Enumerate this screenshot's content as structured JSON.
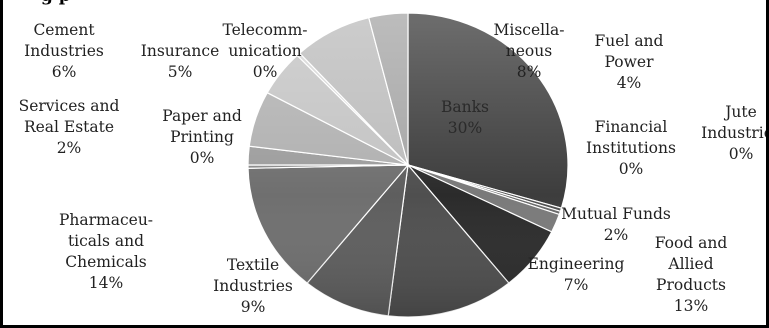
{
  "chart_data": {
    "type": "pie",
    "title_partial": "g                   p",
    "slices": [
      {
        "label": "Banks",
        "lines": [
          "Banks"
        ],
        "pct_label": "30%",
        "value": 30,
        "color": "#3d3d3d"
      },
      {
        "label": "Jute Industries",
        "lines": [
          "Jute",
          "Industries"
        ],
        "pct_label": "0%",
        "value": 0.35,
        "color": "#505050"
      },
      {
        "label": "Financial Institutions",
        "lines": [
          "Financial",
          "Institutions"
        ],
        "pct_label": "0%",
        "value": 0.35,
        "color": "#6a6a6a"
      },
      {
        "label": "Mutual Funds",
        "lines": [
          "Mutual Funds"
        ],
        "pct_label": "2%",
        "value": 2,
        "color": "#7a7a7a"
      },
      {
        "label": "Engineering",
        "lines": [
          "Engineering"
        ],
        "pct_label": "7%",
        "value": 7,
        "color": "#2b2b2b"
      },
      {
        "label": "Food and Allied Products",
        "lines": [
          "Food and",
          "Allied",
          "Products"
        ],
        "pct_label": "13%",
        "value": 13,
        "color": "#4f4f4f"
      },
      {
        "label": "Textile Industries",
        "lines": [
          "Textile",
          "Industries"
        ],
        "pct_label": "9%",
        "value": 9,
        "color": "#5e5e5e"
      },
      {
        "label": "Pharmaceuticals and Chemicals",
        "lines": [
          "Pharmaceu-",
          "ticals and",
          "Chemicals"
        ],
        "pct_label": "14%",
        "value": 14,
        "color": "#6f6f6f"
      },
      {
        "label": "Paper and Printing",
        "lines": [
          "Paper and",
          "Printing"
        ],
        "pct_label": "0%",
        "value": 0.35,
        "color": "#8a8a8a"
      },
      {
        "label": "Services and Real Estate",
        "lines": [
          "Services and",
          "Real Estate"
        ],
        "pct_label": "2%",
        "value": 2,
        "color": "#9c9c9c"
      },
      {
        "label": "Cement Industries",
        "lines": [
          "Cement",
          "Industries"
        ],
        "pct_label": "6%",
        "value": 6,
        "color": "#b0b0b0"
      },
      {
        "label": "Insurance",
        "lines": [
          "Insurance"
        ],
        "pct_label": "5%",
        "value": 5,
        "color": "#c3c3c3"
      },
      {
        "label": "Telecommunication",
        "lines": [
          "Telecomm-",
          "unication"
        ],
        "pct_label": "0%",
        "value": 0.35,
        "color": "#d5d5d5"
      },
      {
        "label": "Miscellaneous",
        "lines": [
          "Miscella-",
          "neous"
        ],
        "pct_label": "8%",
        "value": 8,
        "color": "#bcbcbc"
      },
      {
        "label": "Fuel and Power",
        "lines": [
          "Fuel and",
          "Power"
        ],
        "pct_label": "4%",
        "value": 4,
        "color": "#a6a6a6"
      }
    ]
  }
}
